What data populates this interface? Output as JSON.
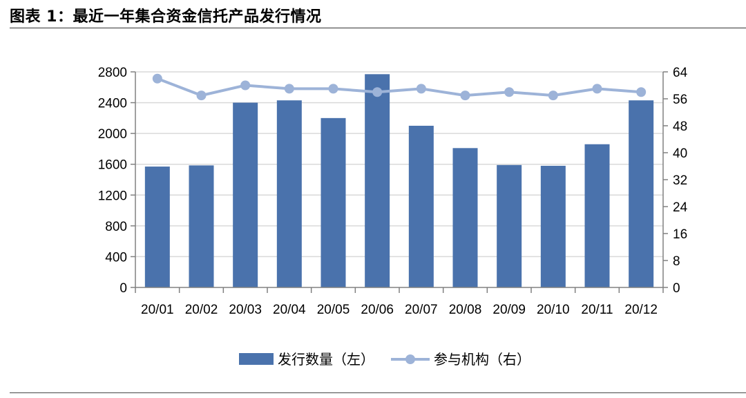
{
  "title": "图表 1：最近一年集合资金信托产品发行情况",
  "chart_data": {
    "type": "bar",
    "title": "图表 1：最近一年集合资金信托产品发行情况",
    "categories": [
      "20/01",
      "20/02",
      "20/03",
      "20/04",
      "20/05",
      "20/06",
      "20/07",
      "20/08",
      "20/09",
      "20/10",
      "20/11",
      "20/12"
    ],
    "series": [
      {
        "name": "发行数量（左）",
        "type": "bar",
        "axis": "left",
        "values": [
          1570,
          1585,
          2400,
          2430,
          2200,
          2770,
          2100,
          1810,
          1590,
          1580,
          1860,
          2430
        ]
      },
      {
        "name": "参与机构（右）",
        "type": "line",
        "axis": "right",
        "values": [
          62,
          57,
          60,
          59,
          59,
          58,
          59,
          57,
          58,
          57,
          59,
          58
        ]
      }
    ],
    "y_left": {
      "min": 0,
      "max": 2800,
      "ticks": [
        "0",
        "400",
        "800",
        "1200",
        "1600",
        "2000",
        "2400",
        "2800"
      ]
    },
    "y_right": {
      "min": 0,
      "max": 64,
      "ticks": [
        "0",
        "8",
        "16",
        "24",
        "32",
        "40",
        "48",
        "56",
        "64"
      ]
    },
    "grid": true,
    "legend_position": "bottom",
    "colors": {
      "bar": "#4a72ac",
      "line": "#9db3d8",
      "grid": "#d9d9d9",
      "axis": "#808080"
    }
  }
}
